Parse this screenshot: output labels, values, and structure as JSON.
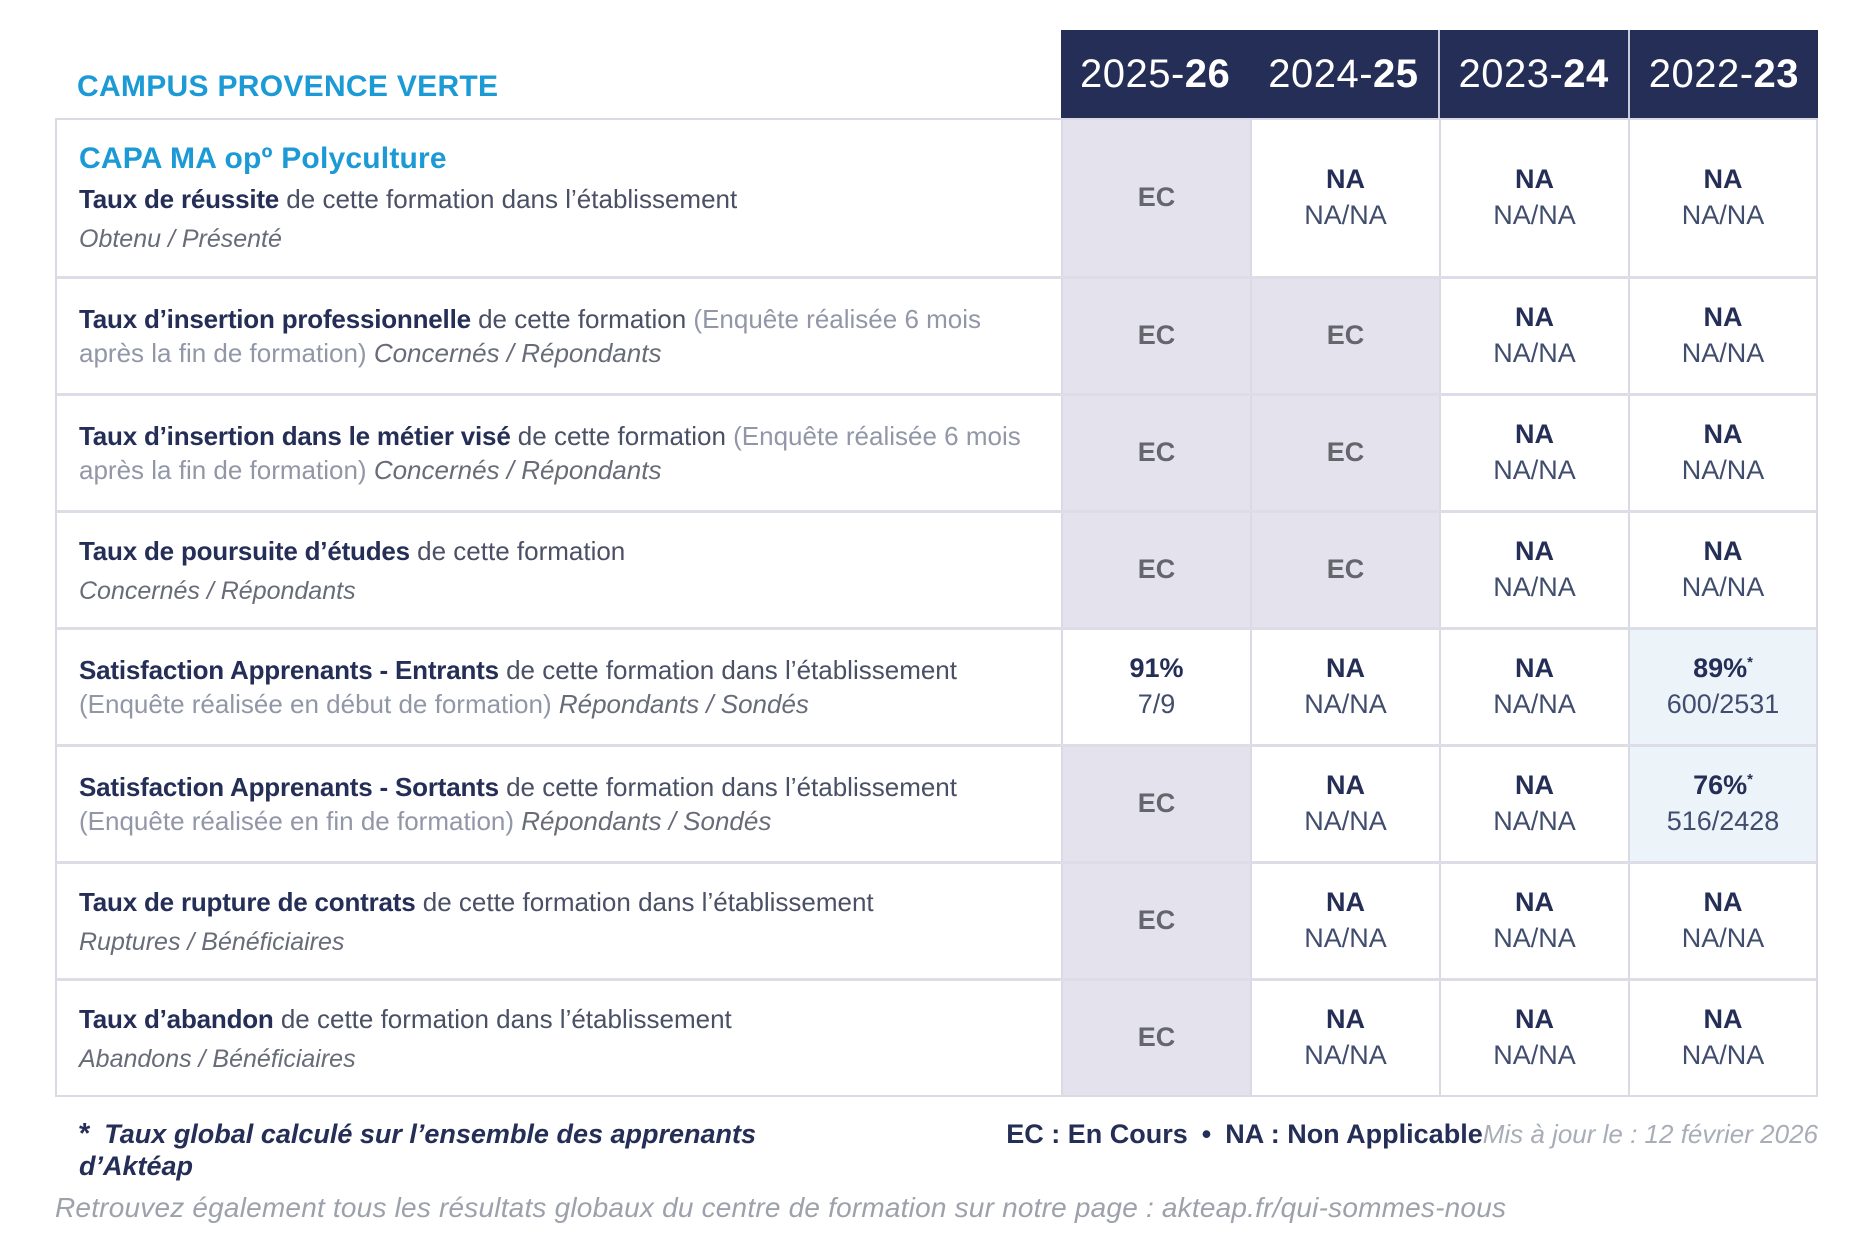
{
  "campus_title": "CAMPUS PROVENCE VERTE",
  "header": {
    "years": [
      {
        "pre": "2025-",
        "bold": "26"
      },
      {
        "pre": "2024-",
        "bold": "25"
      },
      {
        "pre": "2023-",
        "bold": "24"
      },
      {
        "pre": "2022-",
        "bold": "23"
      }
    ]
  },
  "rows": [
    {
      "program": "CAPA MA opº Polyculture",
      "title": "Taux de réussite",
      "mid": " de cette formation dans l’établissement",
      "paren": "",
      "sub_inline": "",
      "sub_block": "Obtenu / Présenté",
      "cells": [
        {
          "main": "EC",
          "variant": "ec"
        },
        {
          "main": "NA",
          "sub": "NA/NA",
          "variant": "plain"
        },
        {
          "main": "NA",
          "sub": "NA/NA",
          "variant": "plain"
        },
        {
          "main": "NA",
          "sub": "NA/NA",
          "variant": "plain"
        }
      ]
    },
    {
      "title": "Taux d’insertion professionnelle",
      "mid": " de cette formation ",
      "paren": "(Enquête réalisée 6 mois après la fin de formation) ",
      "sub_inline": "Concernés / Répondants",
      "sub_block": "",
      "cells": [
        {
          "main": "EC",
          "variant": "ec"
        },
        {
          "main": "EC",
          "variant": "ec"
        },
        {
          "main": "NA",
          "sub": "NA/NA",
          "variant": "plain"
        },
        {
          "main": "NA",
          "sub": "NA/NA",
          "variant": "plain"
        }
      ]
    },
    {
      "title": "Taux d’insertion dans le métier visé",
      "mid": " de cette formation ",
      "paren": "(Enquête réalisée 6 mois après la fin de formation) ",
      "sub_inline": "Concernés / Répondants",
      "sub_block": "",
      "cells": [
        {
          "main": "EC",
          "variant": "ec"
        },
        {
          "main": "EC",
          "variant": "ec"
        },
        {
          "main": "NA",
          "sub": "NA/NA",
          "variant": "plain"
        },
        {
          "main": "NA",
          "sub": "NA/NA",
          "variant": "plain"
        }
      ]
    },
    {
      "title": "Taux de poursuite d’études",
      "mid": " de cette formation",
      "paren": "",
      "sub_inline": "",
      "sub_block": "Concernés / Répondants",
      "cells": [
        {
          "main": "EC",
          "variant": "ec"
        },
        {
          "main": "EC",
          "variant": "ec"
        },
        {
          "main": "NA",
          "sub": "NA/NA",
          "variant": "plain"
        },
        {
          "main": "NA",
          "sub": "NA/NA",
          "variant": "plain"
        }
      ]
    },
    {
      "title": "Satisfaction Apprenants - Entrants",
      "mid": " de cette formation dans l’établissement ",
      "paren": "(Enquête réalisée en début de formation) ",
      "sub_inline": "Répondants / Sondés",
      "sub_block": "",
      "cells": [
        {
          "main": "91%",
          "sub": "7/9",
          "variant": "plain"
        },
        {
          "main": "NA",
          "sub": "NA/NA",
          "variant": "plain"
        },
        {
          "main": "NA",
          "sub": "NA/NA",
          "variant": "plain"
        },
        {
          "main": "89%",
          "star": "*",
          "sub": "600/2531",
          "variant": "hl"
        }
      ]
    },
    {
      "title": "Satisfaction Apprenants - Sortants",
      "mid": " de cette formation dans l’établissement ",
      "paren": "(Enquête réalisée en fin de formation) ",
      "sub_inline": "Répondants / Sondés",
      "sub_block": "",
      "cells": [
        {
          "main": "EC",
          "variant": "ec"
        },
        {
          "main": "NA",
          "sub": "NA/NA",
          "variant": "plain"
        },
        {
          "main": "NA",
          "sub": "NA/NA",
          "variant": "plain"
        },
        {
          "main": "76%",
          "star": "*",
          "sub": "516/2428",
          "variant": "hl"
        }
      ]
    },
    {
      "title": "Taux de rupture de contrats",
      "mid": " de cette formation dans l’établissement",
      "paren": "",
      "sub_inline": "",
      "sub_block": "Ruptures / Bénéficiaires",
      "cells": [
        {
          "main": "EC",
          "variant": "ec"
        },
        {
          "main": "NA",
          "sub": "NA/NA",
          "variant": "plain"
        },
        {
          "main": "NA",
          "sub": "NA/NA",
          "variant": "plain"
        },
        {
          "main": "NA",
          "sub": "NA/NA",
          "variant": "plain"
        }
      ]
    },
    {
      "title": "Taux d’abandon",
      "mid": " de cette formation dans l’établissement",
      "paren": "",
      "sub_inline": "",
      "sub_block": "Abandons / Bénéficiaires",
      "cells": [
        {
          "main": "EC",
          "variant": "ec"
        },
        {
          "main": "NA",
          "sub": "NA/NA",
          "variant": "plain"
        },
        {
          "main": "NA",
          "sub": "NA/NA",
          "variant": "plain"
        },
        {
          "main": "NA",
          "sub": "NA/NA",
          "variant": "plain"
        }
      ]
    }
  ],
  "footer": {
    "star": "*",
    "footnote": "Taux global calculé sur l’ensemble des apprenants d’Aktéap",
    "legend_ec": "EC : En Cours",
    "bullet": "•",
    "legend_na": "NA : Non Applicable",
    "updated": "Mis à jour le : 12 février 2026",
    "bottom_note": "Retrouvez également tous les résultats globaux du centre de formation sur notre page : akteap.fr/qui-sommes-nous"
  },
  "colors": {
    "accent_blue": "#1b9ad6",
    "navy": "#242e56",
    "cell_shaded": "#e4e3ed",
    "cell_highlight": "#ecf4fa",
    "ec_text": "#64666c",
    "border": "#d9dae3"
  }
}
